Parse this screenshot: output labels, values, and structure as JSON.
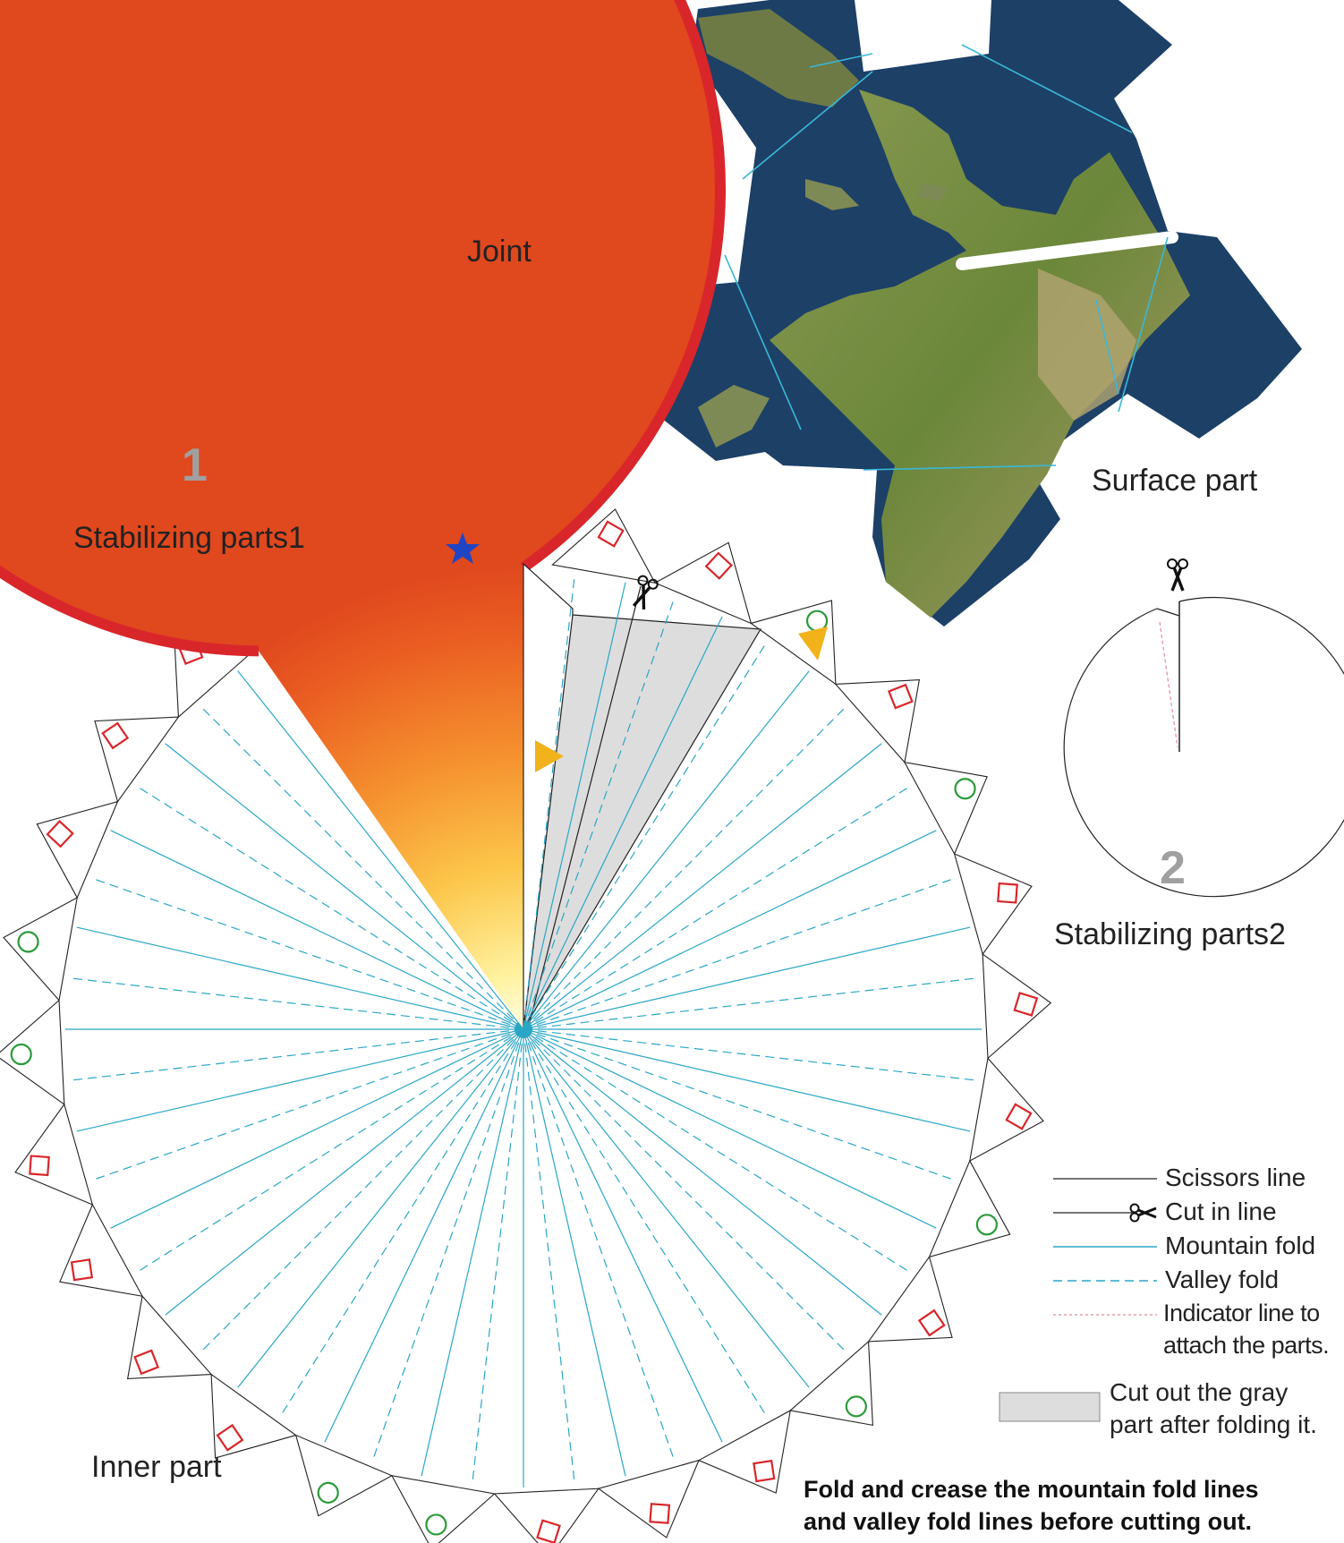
{
  "labels": {
    "stabilizing1": "Stabilizing parts1",
    "stabilizing1_number": "1",
    "joint": "Joint",
    "surface": "Surface part",
    "stabilizing2": "Stabilizing parts2",
    "stabilizing2_number": "2",
    "inner": "Inner part"
  },
  "legend": {
    "scissors_line": "Scissors line",
    "cut_in_line": "Cut in line",
    "mountain_fold": "Mountain fold",
    "valley_fold": "Valley fold",
    "indicator_line_1": "Indicator line to",
    "indicator_line_2": "attach the parts.",
    "gray_part_1": "Cut out the gray",
    "gray_part_2": "part after folding it."
  },
  "note": {
    "line1": "Fold and crease the mountain fold lines",
    "line2": "and valley fold lines before cutting out."
  },
  "icons": {
    "scissors": "scissors-icon",
    "star": "star-icon",
    "triangle": "triangle-marker-icon",
    "square": "square-marker-icon",
    "circle": "circle-marker-icon"
  },
  "colors": {
    "fold_line": "#2aa6c6",
    "indicator": "#e88a9a",
    "rim": "#d9262b",
    "disk_center": "#fff8c8",
    "disk_edge": "#e2481e",
    "gray_part": "#dddddd",
    "star": "#1f45c4",
    "triangle": "#f2b21c",
    "square": "#d9262b",
    "circle": "#2a9a3a",
    "ocean": "#1c3f63",
    "land": "#6f8a3e"
  }
}
